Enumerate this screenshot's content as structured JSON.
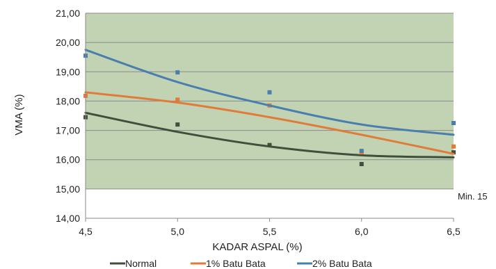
{
  "chart_data": {
    "type": "scatter",
    "xlabel": "KADAR ASPAL (%)",
    "ylabel": "VMA (%)",
    "xlim": [
      4.5,
      6.5
    ],
    "ylim": [
      14.0,
      21.0
    ],
    "x_ticks": [
      "4,5",
      "5,0",
      "5,5",
      "6,0",
      "6,5"
    ],
    "x_tick_values": [
      4.5,
      5.0,
      5.5,
      6.0,
      6.5
    ],
    "y_ticks": [
      "14,00",
      "15,00",
      "16,00",
      "17,00",
      "18,00",
      "19,00",
      "20,00",
      "21,00"
    ],
    "y_tick_values": [
      14,
      15,
      16,
      17,
      18,
      19,
      20,
      21
    ],
    "grid": "horizontal",
    "legend_position": "bottom",
    "shaded_region": {
      "y_from": 15.0,
      "y_to": 21.0,
      "color": "#c1d3b3"
    },
    "annotation": "Min. 15",
    "series": [
      {
        "name": "Normal",
        "color": "#3f4f3b",
        "x": [
          4.5,
          5.0,
          5.5,
          6.0,
          6.5
        ],
        "points": [
          17.45,
          17.2,
          16.5,
          15.85,
          16.25
        ],
        "trend": [
          17.6,
          16.95,
          16.45,
          16.15,
          16.08
        ]
      },
      {
        "name": "1% Batu Bata",
        "color": "#e07b39",
        "x": [
          4.5,
          5.0,
          5.5,
          6.0,
          6.5
        ],
        "points": [
          18.18,
          18.05,
          17.85,
          16.25,
          16.45
        ],
        "trend": [
          18.3,
          17.95,
          17.45,
          16.85,
          16.2
        ]
      },
      {
        "name": "2% Batu Bata",
        "color": "#4a7eae",
        "x": [
          4.5,
          5.0,
          5.5,
          6.0,
          6.5
        ],
        "points": [
          19.55,
          18.98,
          18.3,
          16.3,
          17.25
        ],
        "trend": [
          19.75,
          18.65,
          17.85,
          17.2,
          16.85
        ]
      }
    ]
  }
}
